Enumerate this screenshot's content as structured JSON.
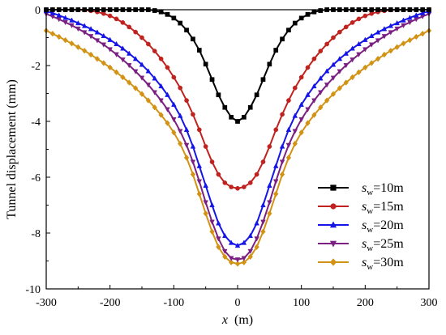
{
  "chart_data": {
    "type": "line",
    "title": "",
    "xlabel": "x",
    "xlabel_unit": "(m)",
    "ylabel": "Tunnel displacement (mm)",
    "xlim": [
      -300,
      300
    ],
    "ylim": [
      -10,
      0
    ],
    "xticks": [
      -300,
      -200,
      -100,
      0,
      100,
      200,
      300
    ],
    "xtick_labels": [
      "-300",
      "-200",
      "-100",
      "0",
      "100",
      "200",
      "300"
    ],
    "yticks": [
      0,
      -2,
      -4,
      -6,
      -8,
      -10
    ],
    "ytick_labels": [
      "0",
      "-2",
      "-4",
      "-6",
      "-8",
      "-10"
    ],
    "grid": false,
    "legend_position": "bottom-right",
    "x": [
      -300,
      -290,
      -280,
      -270,
      -260,
      -250,
      -240,
      -230,
      -220,
      -210,
      -200,
      -190,
      -180,
      -170,
      -160,
      -150,
      -140,
      -130,
      -120,
      -110,
      -100,
      -90,
      -80,
      -70,
      -60,
      -50,
      -40,
      -30,
      -20,
      -10,
      0,
      10,
      20,
      30,
      40,
      50,
      60,
      70,
      80,
      90,
      100,
      110,
      120,
      130,
      140,
      150,
      160,
      170,
      180,
      190,
      200,
      210,
      220,
      230,
      240,
      250,
      260,
      270,
      280,
      290,
      300
    ],
    "series": [
      {
        "name": "s_w=10m",
        "legend_main": "s",
        "legend_sub": "w",
        "legend_tail": "=10m",
        "color": "#000000",
        "marker": "square",
        "values": [
          0,
          0,
          0,
          0,
          0,
          0,
          0,
          0,
          0,
          0,
          0,
          0,
          0,
          0,
          0,
          0,
          0,
          -0.03,
          -0.08,
          -0.17,
          -0.3,
          -0.48,
          -0.73,
          -1.05,
          -1.45,
          -1.95,
          -2.5,
          -3.05,
          -3.5,
          -3.85,
          -4.0,
          -3.85,
          -3.5,
          -3.05,
          -2.5,
          -1.95,
          -1.45,
          -1.05,
          -0.73,
          -0.48,
          -0.3,
          -0.17,
          -0.08,
          -0.03,
          0,
          0,
          0,
          0,
          0,
          0,
          0,
          0,
          0,
          0,
          0,
          0,
          0,
          0,
          0,
          0,
          0
        ]
      },
      {
        "name": "s_w=15m",
        "legend_main": "s",
        "legend_sub": "w",
        "legend_tail": "=15m",
        "color": "#c0231f",
        "marker": "circle",
        "values": [
          0,
          0,
          0,
          0,
          0,
          0,
          -0.01,
          -0.04,
          -0.08,
          -0.14,
          -0.22,
          -0.33,
          -0.46,
          -0.62,
          -0.8,
          -1.0,
          -1.23,
          -1.48,
          -1.76,
          -2.07,
          -2.42,
          -2.8,
          -3.25,
          -3.75,
          -4.3,
          -4.9,
          -5.45,
          -5.9,
          -6.2,
          -6.35,
          -6.4,
          -6.35,
          -6.2,
          -5.9,
          -5.45,
          -4.9,
          -4.3,
          -3.75,
          -3.25,
          -2.8,
          -2.42,
          -2.07,
          -1.76,
          -1.48,
          -1.23,
          -1.0,
          -0.8,
          -0.62,
          -0.46,
          -0.33,
          -0.22,
          -0.14,
          -0.08,
          -0.04,
          -0.01,
          0,
          0,
          0,
          0,
          0,
          0
        ]
      },
      {
        "name": "s_w=20m",
        "legend_main": "s",
        "legend_sub": "w",
        "legend_tail": "=20m",
        "color": "#1515e8",
        "marker": "triangle-up",
        "values": [
          -0.05,
          -0.12,
          -0.2,
          -0.29,
          -0.38,
          -0.48,
          -0.58,
          -0.69,
          -0.81,
          -0.94,
          -1.08,
          -1.23,
          -1.39,
          -1.57,
          -1.76,
          -1.97,
          -2.2,
          -2.46,
          -2.74,
          -3.05,
          -3.4,
          -3.8,
          -4.3,
          -4.9,
          -5.6,
          -6.3,
          -7.0,
          -7.65,
          -8.1,
          -8.35,
          -8.45,
          -8.35,
          -8.1,
          -7.65,
          -7.0,
          -6.3,
          -5.6,
          -4.9,
          -4.3,
          -3.8,
          -3.4,
          -3.05,
          -2.74,
          -2.46,
          -2.2,
          -1.97,
          -1.76,
          -1.57,
          -1.39,
          -1.23,
          -1.08,
          -0.94,
          -0.81,
          -0.69,
          -0.58,
          -0.48,
          -0.38,
          -0.29,
          -0.2,
          -0.12,
          -0.05
        ]
      },
      {
        "name": "s_w=25m",
        "legend_main": "s",
        "legend_sub": "w",
        "legend_tail": "=25m",
        "color": "#7b2082",
        "marker": "triangle-down",
        "values": [
          -0.15,
          -0.24,
          -0.34,
          -0.45,
          -0.56,
          -0.68,
          -0.81,
          -0.95,
          -1.1,
          -1.25,
          -1.42,
          -1.6,
          -1.79,
          -1.99,
          -2.21,
          -2.44,
          -2.69,
          -2.96,
          -3.25,
          -3.57,
          -3.93,
          -4.35,
          -4.85,
          -5.45,
          -6.15,
          -6.9,
          -7.6,
          -8.2,
          -8.65,
          -8.9,
          -8.95,
          -8.9,
          -8.65,
          -8.2,
          -7.6,
          -6.9,
          -6.15,
          -5.45,
          -4.85,
          -4.35,
          -3.93,
          -3.57,
          -3.25,
          -2.96,
          -2.69,
          -2.44,
          -2.21,
          -1.99,
          -1.79,
          -1.6,
          -1.42,
          -1.25,
          -1.1,
          -0.95,
          -0.81,
          -0.68,
          -0.56,
          -0.45,
          -0.34,
          -0.24,
          -0.15
        ]
      },
      {
        "name": "s_w=30m",
        "legend_main": "s",
        "legend_sub": "w",
        "legend_tail": "=30m",
        "color": "#d29315",
        "marker": "diamond",
        "values": [
          -0.75,
          -0.86,
          -0.97,
          -1.09,
          -1.21,
          -1.34,
          -1.47,
          -1.61,
          -1.76,
          -1.91,
          -2.07,
          -2.24,
          -2.42,
          -2.61,
          -2.81,
          -3.02,
          -3.25,
          -3.5,
          -3.77,
          -4.06,
          -4.4,
          -4.8,
          -5.3,
          -5.9,
          -6.6,
          -7.3,
          -7.95,
          -8.5,
          -8.85,
          -9.05,
          -9.1,
          -9.05,
          -8.85,
          -8.5,
          -7.95,
          -7.3,
          -6.6,
          -5.9,
          -5.3,
          -4.8,
          -4.4,
          -4.06,
          -3.77,
          -3.5,
          -3.25,
          -3.02,
          -2.81,
          -2.61,
          -2.42,
          -2.24,
          -2.07,
          -1.91,
          -1.76,
          -1.61,
          -1.47,
          -1.34,
          -1.21,
          -1.09,
          -0.97,
          -0.86,
          -0.75
        ]
      }
    ]
  }
}
